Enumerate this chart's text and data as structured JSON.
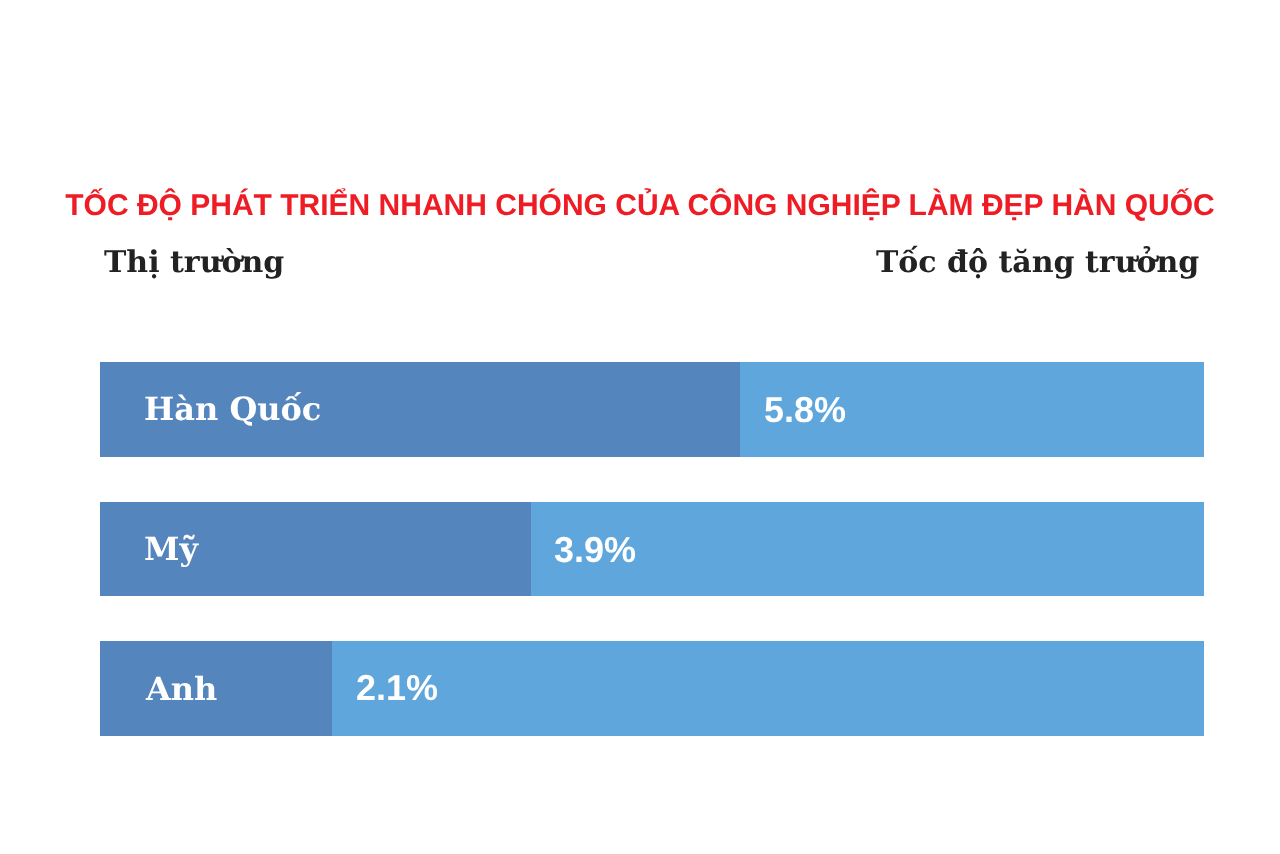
{
  "chart_data": {
    "type": "bar",
    "orientation": "horizontal",
    "stacked": true,
    "title": "TỐC ĐỘ PHÁT TRIỂN NHANH CHÓNG CỦA CÔNG NGHIỆP LÀM ĐẸP HÀN QUỐC",
    "ylabel": "Thị trường",
    "xlabel": "Tốc độ tăng trưởng",
    "categories": [
      "Hàn Quốc",
      "Mỹ",
      "Anh"
    ],
    "series": [
      {
        "color": "#5585bd",
        "values": [
          5.8,
          3.9,
          2.1
        ],
        "value_labels": [
          "5.8%",
          "3.9%",
          "2.1%"
        ]
      },
      {
        "color": "#5ea6db",
        "values": [
          4.2,
          6.1,
          7.9
        ]
      }
    ],
    "xlim": [
      0,
      10
    ],
    "tick_labels": "y"
  }
}
